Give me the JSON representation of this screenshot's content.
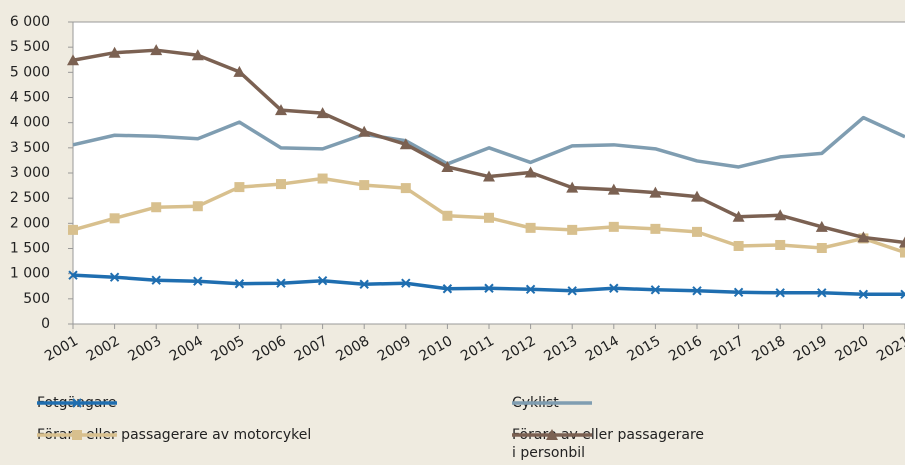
{
  "chart_data": {
    "type": "line",
    "categories": [
      "2001",
      "2002",
      "2003",
      "2004",
      "2005",
      "2006",
      "2007",
      "2008",
      "2009",
      "2010",
      "2011",
      "2012",
      "2013",
      "2014",
      "2015",
      "2016",
      "2017",
      "2018",
      "2019",
      "2020",
      "2021"
    ],
    "ylim": [
      0,
      6000
    ],
    "yticks": [
      0,
      500,
      {
        "value": 1000,
        "label": "1 000"
      },
      {
        "value": 1500,
        "label": "1 500"
      },
      {
        "value": 2000,
        "label": "2 000"
      },
      {
        "value": 2500,
        "label": "2 500"
      },
      {
        "value": 3000,
        "label": "3 000"
      },
      {
        "value": 3500,
        "label": "3 500"
      },
      {
        "value": 4000,
        "label": "4 000"
      },
      {
        "value": 4500,
        "label": "4 500"
      },
      {
        "value": 5000,
        "label": "5 000"
      },
      {
        "value": 5500,
        "label": "5 500"
      },
      {
        "value": 6000,
        "label": "6 000"
      }
    ],
    "series": [
      {
        "name": "Fotgängare",
        "color": "#1f6eb0",
        "marker": "x",
        "values": [
          970,
          930,
          870,
          850,
          800,
          810,
          860,
          790,
          810,
          700,
          710,
          690,
          660,
          710,
          680,
          660,
          630,
          620,
          620,
          590,
          590
        ]
      },
      {
        "name": "Cyklist",
        "color": "#7f9db1",
        "marker": "none",
        "values": [
          3560,
          3750,
          3730,
          3680,
          4010,
          3500,
          3480,
          3770,
          3640,
          3180,
          3500,
          3210,
          3540,
          3560,
          3480,
          3240,
          3120,
          3320,
          3390,
          4100,
          3720
        ]
      },
      {
        "name": "Förare eller passagerare av motorcykel",
        "color": "#d8c08e",
        "marker": "square",
        "values": [
          1870,
          2100,
          2320,
          2340,
          2720,
          2780,
          2890,
          2760,
          2700,
          2150,
          2110,
          1910,
          1870,
          1930,
          1890,
          1830,
          1550,
          1570,
          1510,
          1700,
          1420
        ]
      },
      {
        "name": "Förare av eller passagerare\ni personbil",
        "color": "#7b6152",
        "marker": "triangle",
        "values": [
          5240,
          5390,
          5440,
          5340,
          5010,
          4250,
          4190,
          3820,
          3570,
          3120,
          2930,
          3010,
          2710,
          2670,
          2610,
          2530,
          2130,
          2160,
          1930,
          1720,
          1620
        ]
      }
    ]
  }
}
